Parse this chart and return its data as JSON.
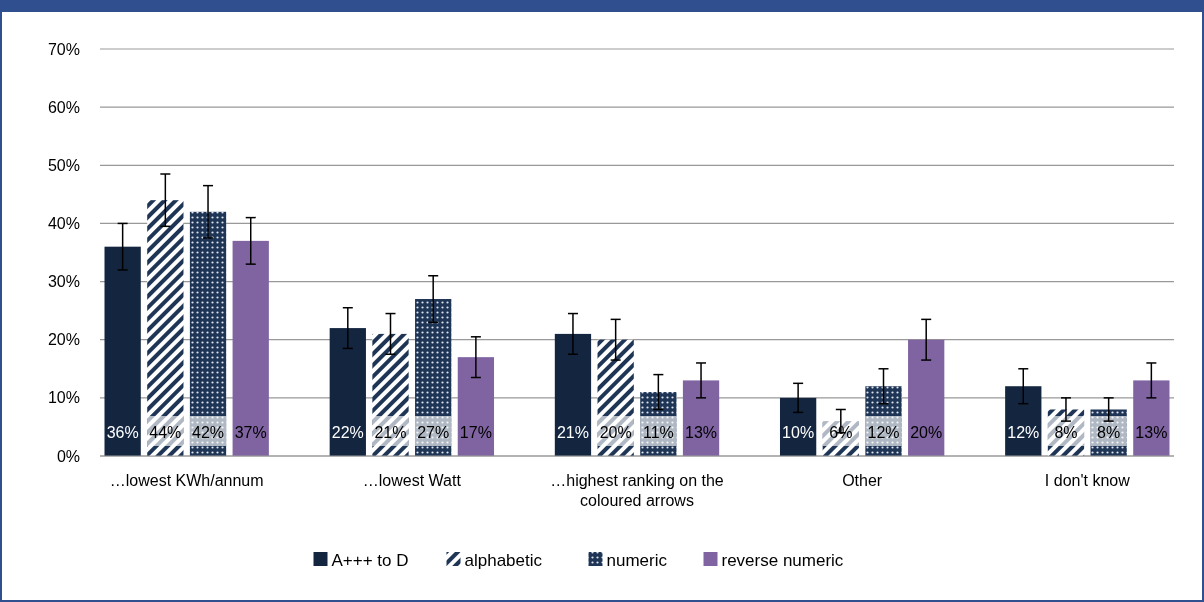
{
  "chart_data": {
    "type": "bar",
    "categories": [
      "…lowest KWh/annum",
      "…lowest Watt",
      "…highest ranking on the coloured arrows",
      "Other",
      "I don't know"
    ],
    "series": [
      {
        "name": "A+++ to D",
        "color": "#13253f",
        "values": [
          36,
          22,
          21,
          10,
          12
        ],
        "value_labels": [
          "36%",
          "22%",
          "21%",
          "10%",
          "12%"
        ],
        "errors": [
          4,
          3.5,
          3.5,
          2.5,
          3
        ]
      },
      {
        "name": "alphabetic",
        "color": "#1f3556",
        "values": [
          44,
          21,
          20,
          6,
          8
        ],
        "value_labels": [
          "44%",
          "21%",
          "20%",
          "6%",
          "8%"
        ],
        "errors": [
          4.5,
          3.5,
          3.5,
          2,
          2
        ]
      },
      {
        "name": "numeric",
        "color": "#1f3556",
        "values": [
          42,
          27,
          11,
          12,
          8
        ],
        "value_labels": [
          "42%",
          "27%",
          "11%",
          "12%",
          "8%"
        ],
        "errors": [
          4.5,
          4,
          3,
          3,
          2
        ]
      },
      {
        "name": "reverse numeric",
        "color": "#8064a2",
        "values": [
          37,
          17,
          13,
          20,
          13
        ],
        "value_labels": [
          "37%",
          "17%",
          "13%",
          "20%",
          "13%"
        ],
        "errors": [
          4,
          3.5,
          3,
          3.5,
          3
        ]
      }
    ],
    "ylim": [
      0,
      70
    ],
    "yticks": [
      {
        "value": 0,
        "label": "0%"
      },
      {
        "value": 10,
        "label": "10%"
      },
      {
        "value": 20,
        "label": "20%"
      },
      {
        "value": 30,
        "label": "30%"
      },
      {
        "value": 40,
        "label": "40%"
      },
      {
        "value": 50,
        "label": "50%"
      },
      {
        "value": 60,
        "label": "60%"
      },
      {
        "value": 70,
        "label": "70%"
      }
    ],
    "grid": "y",
    "legend": "bottom"
  }
}
